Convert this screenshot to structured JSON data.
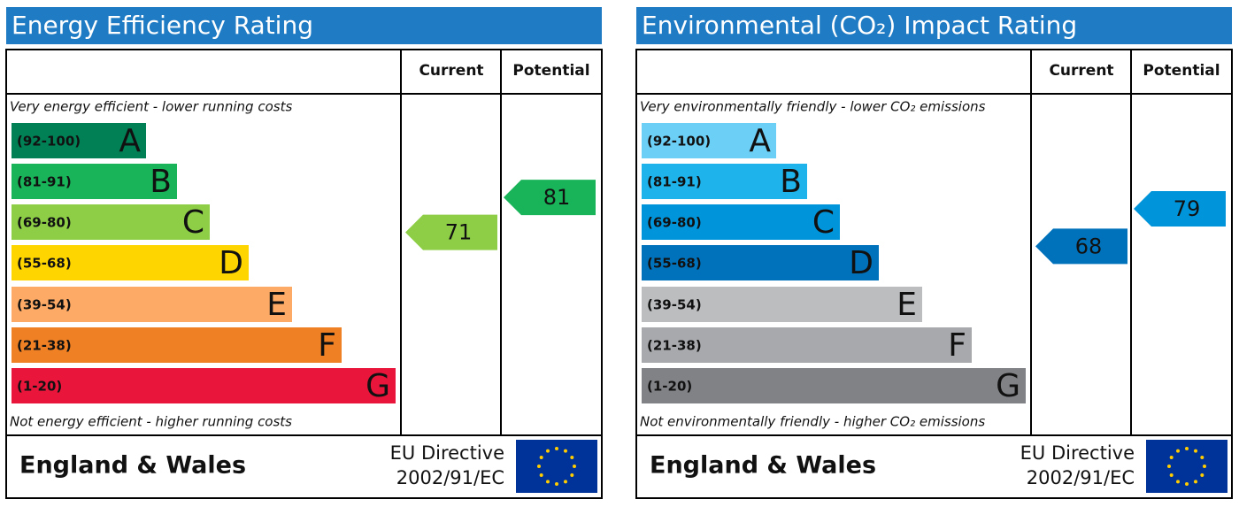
{
  "chart_data": [
    {
      "type": "epc",
      "title": "Energy Efficiency Rating",
      "current_label": "Current",
      "potential_label": "Potential",
      "top_note": "Very energy efficient - lower running costs",
      "bottom_note": "Not energy efficient - higher running costs",
      "bands": [
        {
          "range": "(92-100)",
          "letter": "A",
          "color": "#008054"
        },
        {
          "range": "(81-91)",
          "letter": "B",
          "color": "#19b459"
        },
        {
          "range": "(69-80)",
          "letter": "C",
          "color": "#8dce46"
        },
        {
          "range": "(55-68)",
          "letter": "D",
          "color": "#ffd500"
        },
        {
          "range": "(39-54)",
          "letter": "E",
          "color": "#fcaa65"
        },
        {
          "range": "(21-38)",
          "letter": "F",
          "color": "#ef8023"
        },
        {
          "range": "(1-20)",
          "letter": "G",
          "color": "#e9153b"
        }
      ],
      "current": 71,
      "potential": 81,
      "footer": "England & Wales",
      "directive": [
        "EU Directive",
        "2002/91/EC"
      ]
    },
    {
      "type": "epc",
      "title": "Environmental (CO₂) Impact Rating",
      "current_label": "Current",
      "potential_label": "Potential",
      "top_note": "Very environmentally friendly - lower CO₂ emissions",
      "bottom_note": "Not environmentally friendly - higher CO₂ emissions",
      "bands": [
        {
          "range": "(92-100)",
          "letter": "A",
          "color": "#6ccff6"
        },
        {
          "range": "(81-91)",
          "letter": "B",
          "color": "#1eb3ea"
        },
        {
          "range": "(69-80)",
          "letter": "C",
          "color": "#0095da"
        },
        {
          "range": "(55-68)",
          "letter": "D",
          "color": "#0072bc"
        },
        {
          "range": "(39-54)",
          "letter": "E",
          "color": "#bbbdbf"
        },
        {
          "range": "(21-38)",
          "letter": "F",
          "color": "#a7a9ac"
        },
        {
          "range": "(1-20)",
          "letter": "G",
          "color": "#808285"
        }
      ],
      "current": 68,
      "potential": 79,
      "footer": "England & Wales",
      "directive": [
        "EU Directive",
        "2002/91/EC"
      ]
    }
  ]
}
